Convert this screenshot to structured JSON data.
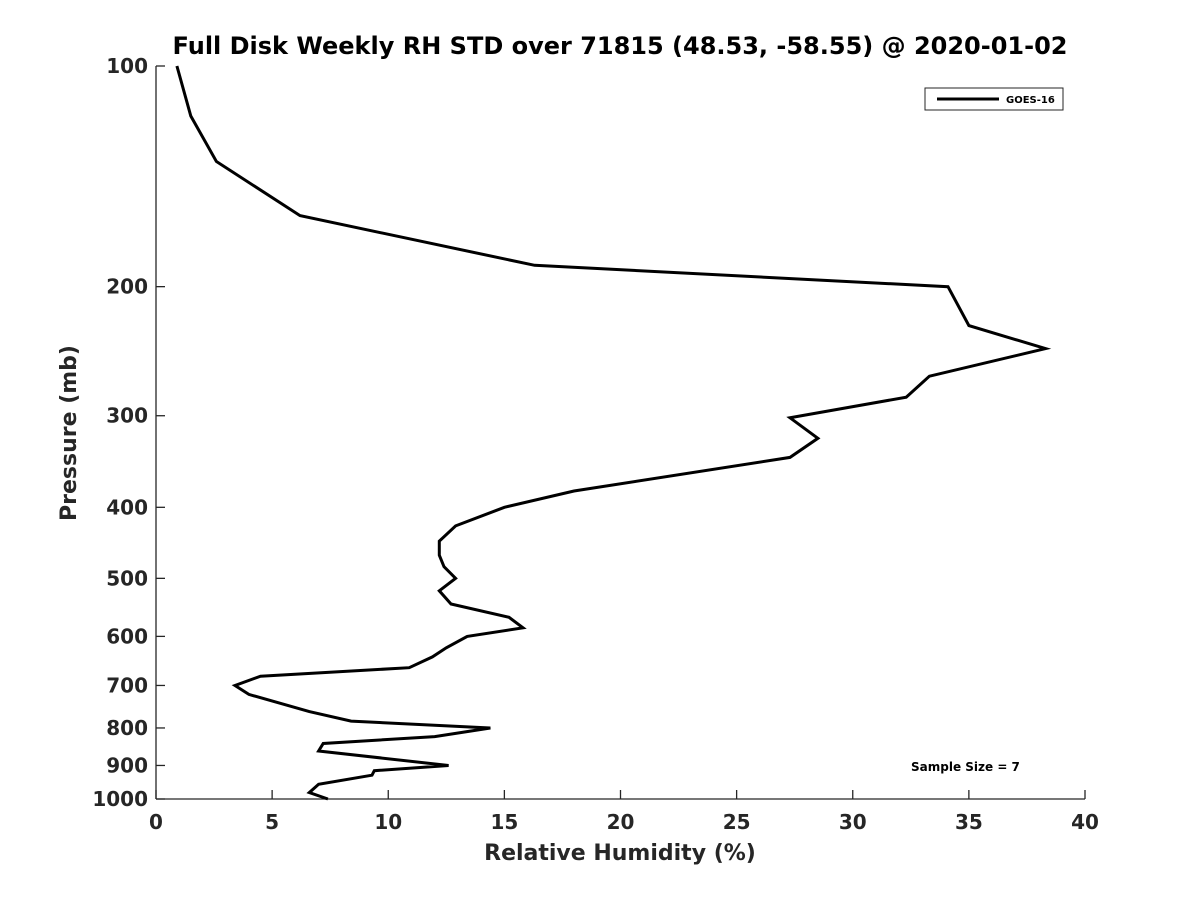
{
  "chart_data": {
    "type": "line",
    "title": "Full Disk Weekly RH STD over 71815 (48.53, -58.55) @ 2020-01-02",
    "xlabel": "Relative Humidity (%)",
    "ylabel": "Pressure (mb)",
    "xlim": [
      0,
      40
    ],
    "ylim": [
      100,
      1000
    ],
    "y_scale": "log",
    "y_reversed": true,
    "x_ticks": [
      0,
      5,
      10,
      15,
      20,
      25,
      30,
      35,
      40
    ],
    "y_ticks": [
      100,
      200,
      300,
      400,
      500,
      600,
      700,
      800,
      900,
      1000
    ],
    "grid": false,
    "legend_position": "top-right",
    "colors": {
      "line": "#000000",
      "axis": "#262626"
    },
    "series": [
      {
        "name": "GOES-16",
        "points": [
          [
            0.9,
            100
          ],
          [
            1.5,
            117
          ],
          [
            2.6,
            135
          ],
          [
            6.2,
            160
          ],
          [
            16.3,
            187
          ],
          [
            34.1,
            200
          ],
          [
            35.0,
            226
          ],
          [
            38.3,
            243
          ],
          [
            33.3,
            265
          ],
          [
            32.3,
            283
          ],
          [
            27.3,
            302
          ],
          [
            28.5,
            322
          ],
          [
            27.3,
            342
          ],
          [
            18.0,
            380
          ],
          [
            15.0,
            400
          ],
          [
            12.9,
            424
          ],
          [
            12.2,
            445
          ],
          [
            12.2,
            465
          ],
          [
            12.4,
            482
          ],
          [
            12.9,
            500
          ],
          [
            12.2,
            520
          ],
          [
            12.7,
            542
          ],
          [
            15.2,
            565
          ],
          [
            15.8,
            584
          ],
          [
            13.4,
            600
          ],
          [
            12.5,
            622
          ],
          [
            11.9,
            640
          ],
          [
            10.9,
            662
          ],
          [
            4.5,
            680
          ],
          [
            3.4,
            700
          ],
          [
            4.0,
            720
          ],
          [
            6.6,
            760
          ],
          [
            8.4,
            783
          ],
          [
            14.4,
            800
          ],
          [
            12.0,
            822
          ],
          [
            7.2,
            840
          ],
          [
            7.0,
            860
          ],
          [
            12.6,
            900
          ],
          [
            9.4,
            915
          ],
          [
            9.3,
            928
          ],
          [
            7.0,
            955
          ],
          [
            6.6,
            980
          ],
          [
            7.4,
            1000
          ]
        ]
      }
    ],
    "annotations": [
      "Sample Size = 7"
    ]
  }
}
